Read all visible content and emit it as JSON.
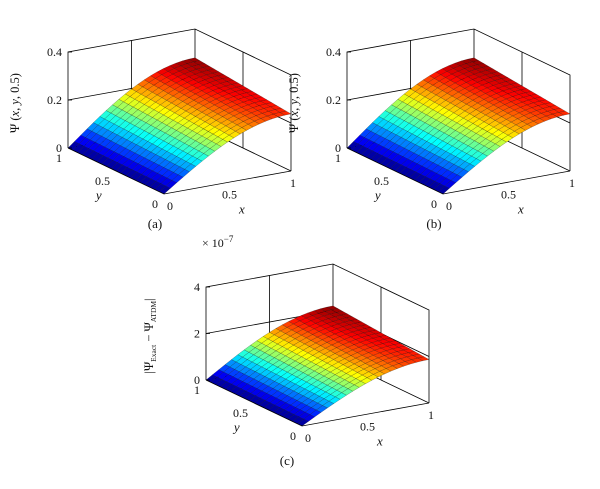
{
  "chart_data": [
    {
      "type": "surface",
      "panel": "a",
      "caption": "(a)",
      "zlabel_prefix": "Ψ (",
      "zlabel_args": [
        "x",
        "y"
      ],
      "zlabel_suffix": ", 0.5)",
      "xlabel": "x",
      "ylabel": "y",
      "xlim": [
        0,
        1
      ],
      "ylim": [
        0,
        1
      ],
      "zlim": [
        0,
        0.4
      ],
      "x_ticks": [
        "0",
        "0.5",
        "1"
      ],
      "y_ticks": [
        "0",
        "0.5",
        "1"
      ],
      "z_ticks": [
        "0",
        "0.2",
        "0.4"
      ],
      "exponent_label": "",
      "peak_z": 0.28,
      "grid_n": 20,
      "surface": "z = peak · sin(πx/2)·(1 − 0.15·y)",
      "colormap": "jet"
    },
    {
      "type": "surface",
      "panel": "b",
      "caption": "(b)",
      "zlabel_prefix": "Ψ (",
      "zlabel_args": [
        "x",
        "y"
      ],
      "zlabel_suffix": ", 0.5)",
      "xlabel": "x",
      "ylabel": "y",
      "xlim": [
        0,
        1
      ],
      "ylim": [
        0,
        1
      ],
      "zlim": [
        0,
        0.4
      ],
      "x_ticks": [
        "0",
        "0.5",
        "1"
      ],
      "y_ticks": [
        "0",
        "0.5",
        "1"
      ],
      "z_ticks": [
        "0",
        "0.2",
        "0.4"
      ],
      "exponent_label": "",
      "peak_z": 0.28,
      "grid_n": 20,
      "surface": "z = peak · sin(πx/2)·(1 − 0.15·y)",
      "colormap": "jet"
    },
    {
      "type": "surface",
      "panel": "c",
      "caption": "(c)",
      "zlabel_parts": [
        "|Ψ",
        "Exact",
        " − Ψ",
        "ATDM",
        "|"
      ],
      "xlabel": "x",
      "ylabel": "y",
      "xlim": [
        0,
        1
      ],
      "ylim": [
        0,
        1
      ],
      "zlim": [
        0,
        4
      ],
      "x_ticks": [
        "0",
        "0.5",
        "1"
      ],
      "y_ticks": [
        "0",
        "0.5",
        "1"
      ],
      "z_ticks": [
        "0",
        "2",
        "4"
      ],
      "exponent_label": "× 10",
      "exponent_power": "−7",
      "peak_z": 2.2,
      "grid_n": 20,
      "surface": "z = peak · sin(πx/2)·(1 − 0.15·y)",
      "colormap": "jet"
    }
  ]
}
